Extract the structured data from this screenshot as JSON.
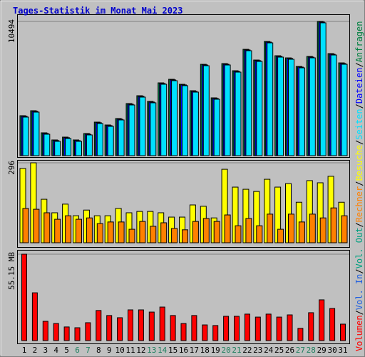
{
  "title": "Tages-Statistik im Monat Mai 2023",
  "legend_separator": "/",
  "categories": [
    "1",
    "2",
    "3",
    "4",
    "5",
    "6",
    "7",
    "8",
    "9",
    "10",
    "11",
    "12",
    "13",
    "14",
    "15",
    "16",
    "17",
    "18",
    "19",
    "20",
    "21",
    "22",
    "23",
    "24",
    "25",
    "26",
    "27",
    "28",
    "29",
    "30",
    "31"
  ],
  "category_colors": [
    "#000000",
    "#000000",
    "#000000",
    "#000000",
    "#000000",
    "#208060",
    "#208060",
    "#000000",
    "#000000",
    "#000000",
    "#000000",
    "#000000",
    "#208060",
    "#208060",
    "#000000",
    "#000000",
    "#000000",
    "#000000",
    "#000000",
    "#208060",
    "#208060",
    "#000000",
    "#000000",
    "#000000",
    "#000000",
    "#000000",
    "#208060",
    "#208060",
    "#000000",
    "#000000",
    "#000000"
  ],
  "chart_data": [
    {
      "type": "bar",
      "ylim": [
        0,
        10494
      ],
      "yticks": [
        10494
      ],
      "series": [
        {
          "name": "Anfragen",
          "color": "#008040",
          "values": [
            3125,
            3515,
            1786,
            1228,
            1451,
            1228,
            1730,
            2623,
            2399,
            2902,
            4073,
            4687,
            4241,
            5692,
            5971,
            5580,
            5078,
            7142,
            4520,
            7198,
            6640,
            8314,
            7477,
            8928,
            7812,
            7645,
            6975,
            7756,
            10494,
            7979,
            7254
          ]
        },
        {
          "name": "Dateien",
          "color": "#0000ff",
          "values": [
            3075,
            3465,
            1736,
            1178,
            1401,
            1178,
            1680,
            2573,
            2349,
            2852,
            4023,
            4637,
            4191,
            5642,
            5921,
            5530,
            5028,
            7092,
            4470,
            7148,
            6590,
            8264,
            7427,
            8878,
            7762,
            7595,
            6925,
            7706,
            10444,
            7929,
            7204
          ]
        },
        {
          "name": "Seiten",
          "color": "#00e0ff",
          "values": [
            3015,
            3405,
            1676,
            1118,
            1341,
            1118,
            1620,
            2513,
            2289,
            2792,
            3963,
            4577,
            4131,
            5582,
            5861,
            5470,
            4968,
            7032,
            4410,
            7088,
            6530,
            8204,
            7367,
            8818,
            7702,
            7535,
            6865,
            7646,
            10384,
            7869,
            7144
          ]
        }
      ]
    },
    {
      "type": "bar",
      "ylim": [
        0,
        296
      ],
      "yticks": [
        296
      ],
      "series": [
        {
          "name": "Besuche",
          "color": "#ffff00",
          "values": [
            275,
            296,
            161,
            111,
            143,
            100,
            121,
            100,
            100,
            127,
            111,
            116,
            116,
            111,
            95,
            95,
            140,
            135,
            92,
            272,
            206,
            198,
            190,
            235,
            206,
            219,
            150,
            230,
            222,
            246,
            150
          ]
        },
        {
          "name": "Rechner",
          "color": "#ff8000",
          "values": [
            127,
            124,
            111,
            87,
            100,
            87,
            92,
            71,
            77,
            77,
            50,
            79,
            61,
            74,
            53,
            48,
            79,
            90,
            79,
            103,
            63,
            90,
            63,
            106,
            50,
            106,
            77,
            106,
            92,
            129,
            100
          ]
        }
      ]
    },
    {
      "type": "bar",
      "ylim": [
        0,
        55.15
      ],
      "yticks": [
        {
          "value": 55.15,
          "label": "55.15 MB"
        }
      ],
      "series": [
        {
          "name": "Vol. Out",
          "color": "#00a080",
          "values": [
            null,
            null,
            null,
            null,
            null,
            null,
            null,
            null,
            null,
            null,
            null,
            null,
            null,
            null,
            null,
            null,
            null,
            null,
            null,
            null,
            null,
            null,
            null,
            null,
            null,
            null,
            null,
            null,
            null,
            null,
            null
          ]
        },
        {
          "name": "Vol. In",
          "color": "#2060e0",
          "values": [
            null,
            null,
            null,
            null,
            null,
            null,
            null,
            null,
            null,
            null,
            null,
            null,
            null,
            null,
            null,
            null,
            null,
            null,
            null,
            null,
            null,
            null,
            null,
            null,
            null,
            null,
            null,
            null,
            null,
            null,
            null
          ]
        },
        {
          "name": "Volumen",
          "color": "#ff0000",
          "values": [
            55.15,
            30.5,
            12.3,
            10.9,
            8.7,
            8.2,
            11.4,
            19.2,
            16.0,
            14.6,
            19.6,
            19.6,
            18.2,
            21.4,
            16.0,
            10.9,
            16.0,
            10.0,
            9.6,
            15.5,
            15.5,
            16.9,
            15.0,
            16.9,
            15.0,
            16.4,
            7.8,
            17.8,
            26.0,
            20.5,
            10.5
          ]
        }
      ]
    }
  ]
}
